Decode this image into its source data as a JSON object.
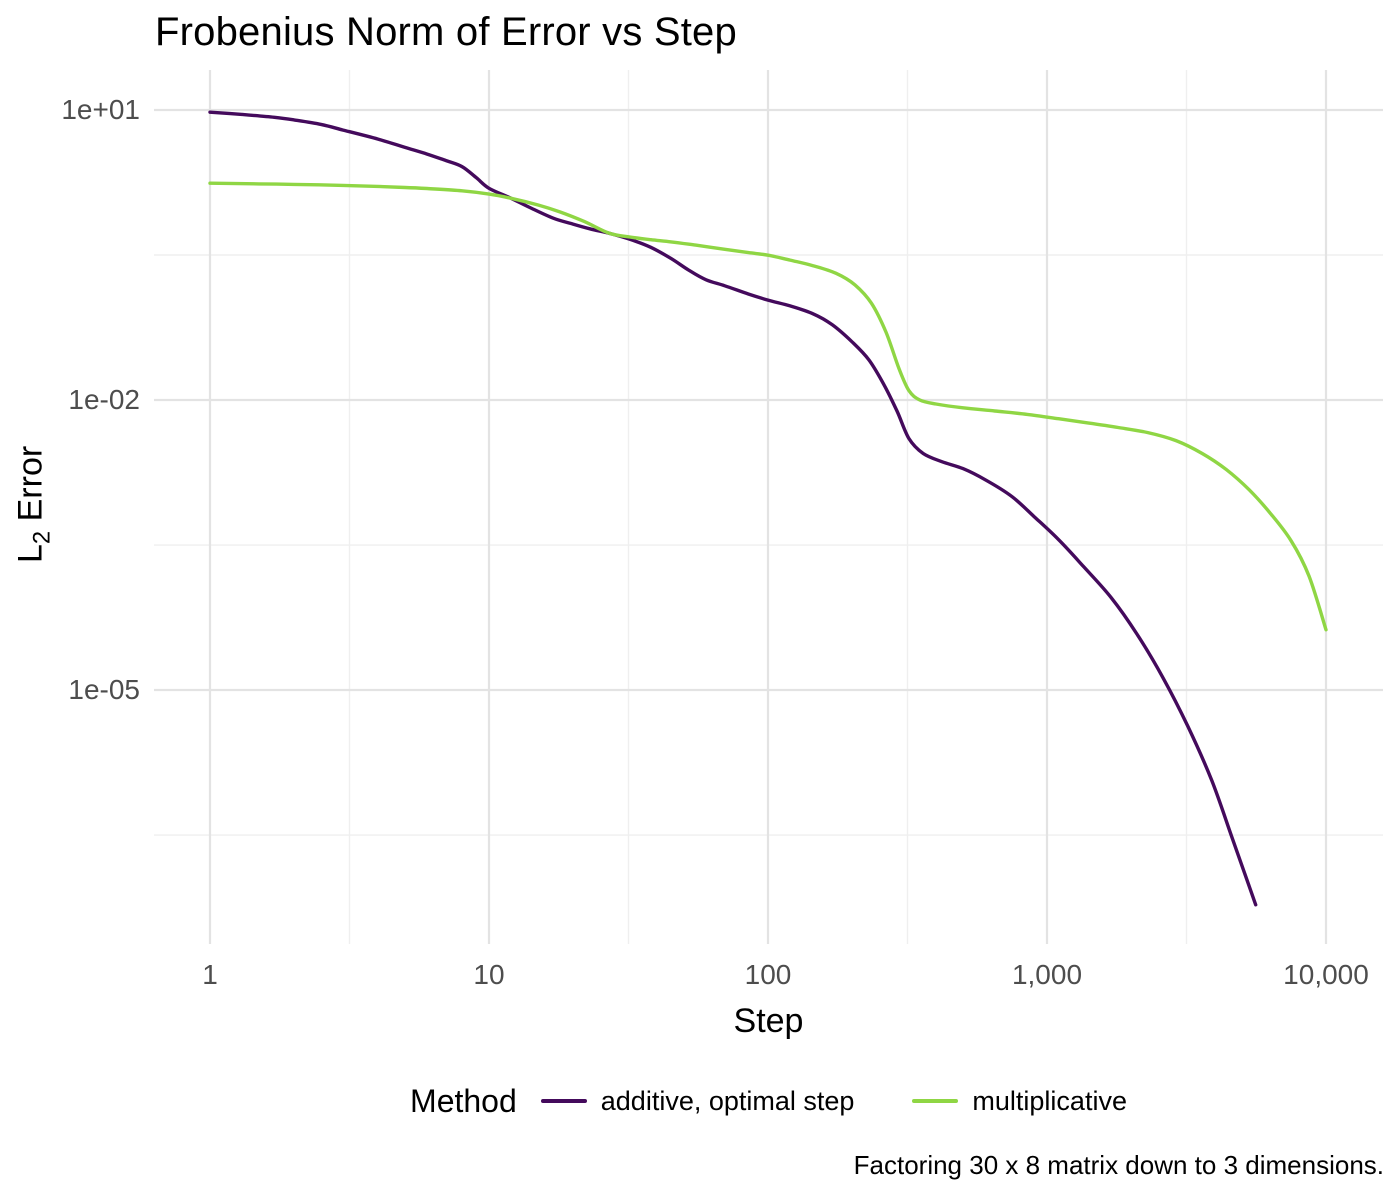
{
  "title": "Frobenius Norm of Error vs Step",
  "caption": "Factoring 30 x 8 matrix down to 3 dimensions.",
  "axes": {
    "x": {
      "label": "Step",
      "ticks": [
        {
          "value": 1,
          "label": "1"
        },
        {
          "value": 10,
          "label": "10"
        },
        {
          "value": 100,
          "label": "100"
        },
        {
          "value": 1000,
          "label": "1,000"
        },
        {
          "value": 10000,
          "label": "10,000"
        }
      ],
      "minor": [
        3.1623,
        31.623,
        316.23,
        3162.3
      ]
    },
    "y": {
      "label_prefix": "L",
      "label_sub": "2",
      "label_suffix": " Error",
      "ticks": [
        {
          "value": 10,
          "label": "1e+01"
        },
        {
          "value": 0.01,
          "label": "1e-02"
        },
        {
          "value": 1e-05,
          "label": "1e-05"
        }
      ],
      "minor": [
        0.31623,
        0.00031623,
        3.1623e-07
      ]
    }
  },
  "legend": {
    "title": "Method",
    "entries": [
      {
        "label": "additive, optimal step",
        "color": "#440a5c"
      },
      {
        "label": "multiplicative",
        "color": "#8fd644"
      }
    ]
  },
  "colors": {
    "grid_major": "#e3e3e3",
    "grid_minor": "#efefef",
    "tick_text": "#4d4d4d",
    "background": "#ffffff"
  },
  "chart_data": {
    "type": "line",
    "title": "Frobenius Norm of Error vs Step",
    "xlabel": "Step",
    "ylabel": "L2 Error",
    "x_scale": "log10",
    "y_scale": "log10",
    "xlim": [
      0.62,
      16000
    ],
    "ylim": [
      2e-09,
      30
    ],
    "grid": true,
    "legend_position": "bottom",
    "x_ticks": [
      1,
      10,
      100,
      1000,
      10000
    ],
    "y_ticks": [
      10,
      0.01,
      1e-05
    ],
    "series": [
      {
        "name": "additive, optimal step",
        "color": "#440a5c",
        "points": [
          [
            1,
            9.5
          ],
          [
            1.3,
            9.0
          ],
          [
            1.7,
            8.4
          ],
          [
            2,
            7.9
          ],
          [
            2.5,
            7.1
          ],
          [
            3,
            6.2
          ],
          [
            4,
            5.0
          ],
          [
            5,
            4.1
          ],
          [
            6,
            3.5
          ],
          [
            7,
            3.0
          ],
          [
            8,
            2.6
          ],
          [
            9,
            2.0
          ],
          [
            10,
            1.55
          ],
          [
            12,
            1.22
          ],
          [
            14,
            0.98
          ],
          [
            17,
            0.76
          ],
          [
            20,
            0.66
          ],
          [
            23,
            0.59
          ],
          [
            27,
            0.53
          ],
          [
            32,
            0.46
          ],
          [
            38,
            0.38
          ],
          [
            45,
            0.29
          ],
          [
            52,
            0.22
          ],
          [
            60,
            0.175
          ],
          [
            70,
            0.152
          ],
          [
            85,
            0.125
          ],
          [
            100,
            0.108
          ],
          [
            120,
            0.094
          ],
          [
            145,
            0.078
          ],
          [
            170,
            0.06
          ],
          [
            200,
            0.04
          ],
          [
            230,
            0.026
          ],
          [
            260,
            0.0145
          ],
          [
            290,
            0.0077
          ],
          [
            320,
            0.004
          ],
          [
            360,
            0.0028
          ],
          [
            420,
            0.0023
          ],
          [
            500,
            0.00195
          ],
          [
            600,
            0.0015
          ],
          [
            750,
            0.001
          ],
          [
            900,
            0.00062
          ],
          [
            1100,
            0.00036
          ],
          [
            1350,
            0.00019
          ],
          [
            1700,
            9e-05
          ],
          [
            2100,
            3.8e-05
          ],
          [
            2600,
            1.35e-05
          ],
          [
            3200,
            4.2e-06
          ],
          [
            3900,
            1.15e-06
          ],
          [
            4600,
            3e-07
          ],
          [
            5200,
            1.1e-07
          ],
          [
            5600,
            6e-08
          ]
        ]
      },
      {
        "name": "multiplicative",
        "color": "#8fd644",
        "points": [
          [
            1,
            1.75
          ],
          [
            1.5,
            1.72
          ],
          [
            2,
            1.7
          ],
          [
            3,
            1.66
          ],
          [
            4,
            1.62
          ],
          [
            5,
            1.58
          ],
          [
            6,
            1.54
          ],
          [
            8,
            1.46
          ],
          [
            10,
            1.35
          ],
          [
            12,
            1.22
          ],
          [
            15,
            1.04
          ],
          [
            18,
            0.88
          ],
          [
            22,
            0.7
          ],
          [
            27,
            0.53
          ],
          [
            32,
            0.485
          ],
          [
            38,
            0.455
          ],
          [
            45,
            0.432
          ],
          [
            55,
            0.4
          ],
          [
            70,
            0.362
          ],
          [
            85,
            0.335
          ],
          [
            100,
            0.315
          ],
          [
            120,
            0.28
          ],
          [
            145,
            0.245
          ],
          [
            175,
            0.205
          ],
          [
            205,
            0.155
          ],
          [
            235,
            0.1
          ],
          [
            265,
            0.05
          ],
          [
            295,
            0.021
          ],
          [
            320,
            0.0125
          ],
          [
            350,
            0.01
          ],
          [
            400,
            0.0091
          ],
          [
            500,
            0.0083
          ],
          [
            650,
            0.0077
          ],
          [
            850,
            0.0071
          ],
          [
            1100,
            0.0064
          ],
          [
            1400,
            0.0058
          ],
          [
            1800,
            0.0052
          ],
          [
            2300,
            0.0046
          ],
          [
            2900,
            0.0038
          ],
          [
            3600,
            0.0028
          ],
          [
            4400,
            0.0019
          ],
          [
            5300,
            0.00118
          ],
          [
            6300,
            0.00068
          ],
          [
            7500,
            0.00035
          ],
          [
            8700,
            0.00015
          ],
          [
            10000,
            4.2e-05
          ]
        ]
      }
    ]
  }
}
